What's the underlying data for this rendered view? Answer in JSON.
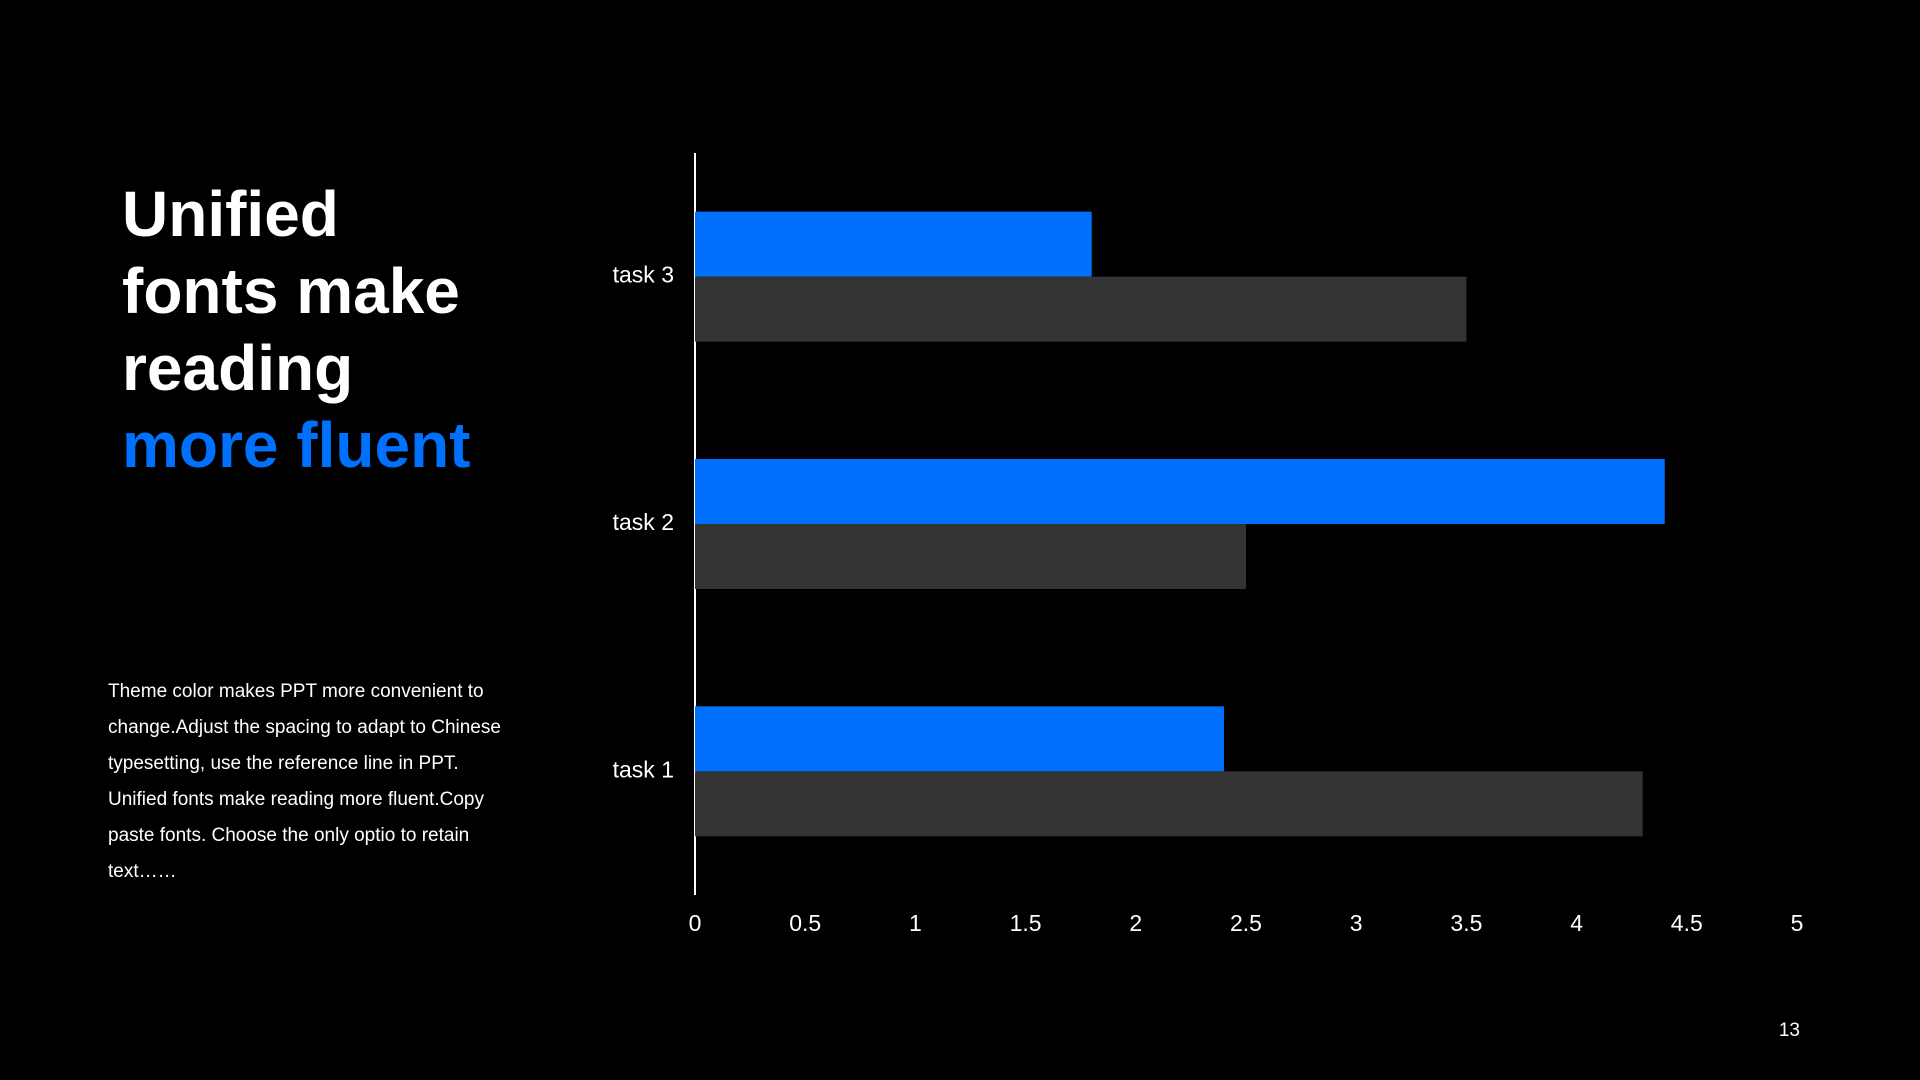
{
  "slide": {
    "heading_lines": [
      "Unified",
      "fonts make",
      "reading"
    ],
    "heading_accent": "more fluent",
    "body": "Theme  color makes PPT more convenient to change.Adjust  the spacing to adapt to Chinese  typesetting, use the reference line in PPT. Unified  fonts make reading more fluent.Copy paste fonts. Choose the only optio to retain text……",
    "page_number": "13"
  },
  "colors": {
    "background": "#000000",
    "accent": "#0070FF",
    "secondary_bar": "#333333",
    "text": "#FFFFFF"
  },
  "chart_data": {
    "type": "bar",
    "orientation": "horizontal",
    "categories": [
      "task 1",
      "task 2",
      "task 3"
    ],
    "series": [
      {
        "color": "#0070FF",
        "values": [
          2.4,
          4.4,
          1.8
        ]
      },
      {
        "color": "#333333",
        "values": [
          4.3,
          2.5,
          3.5
        ]
      }
    ],
    "x_ticks": [
      "0",
      "0.5",
      "1",
      "1.5",
      "2",
      "2.5",
      "3",
      "3.5",
      "4",
      "4.5",
      "5"
    ],
    "xlim": [
      0,
      5
    ],
    "grid": false,
    "legend": "none"
  }
}
